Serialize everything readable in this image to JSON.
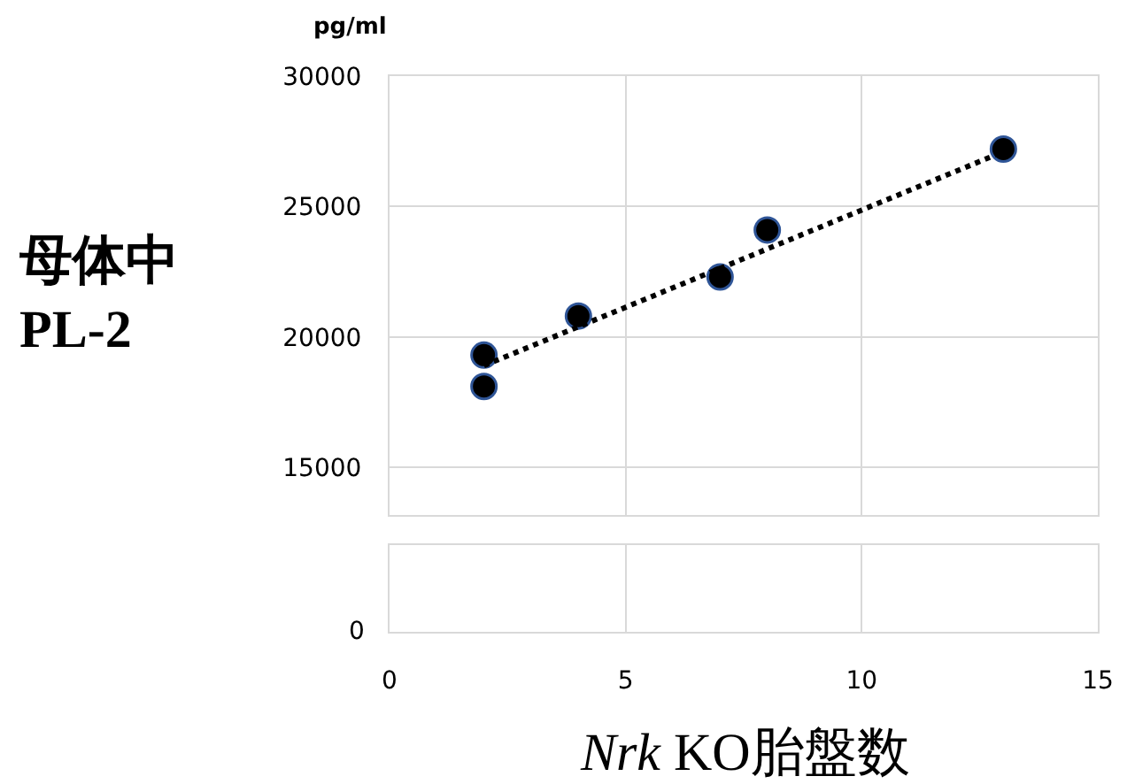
{
  "chart_data": {
    "type": "scatter",
    "ylabel": "母体中\nPL-2",
    "xlabel": "Nrk KO胎盤数",
    "annotations": [
      "pg/ml",
      "0"
    ],
    "xlim": [
      0,
      15
    ],
    "xticks": [
      0,
      5,
      10,
      15
    ],
    "ylim": [
      13170,
      30000
    ],
    "yticks": [
      15000,
      20000,
      25000,
      30000
    ],
    "grid": true,
    "marker": "circle",
    "series": [
      {
        "color": "#000000",
        "x": [
          2,
          2,
          4,
          7,
          8,
          13
        ],
        "values": [
          19300,
          18100,
          20800,
          22300,
          24100,
          27200
        ]
      },
      {
        "type": "line",
        "line_style": "dotted",
        "marker": "none",
        "color": "#000000",
        "x": [
          2,
          13
        ],
        "values": [
          18900,
          27100
        ]
      }
    ]
  }
}
